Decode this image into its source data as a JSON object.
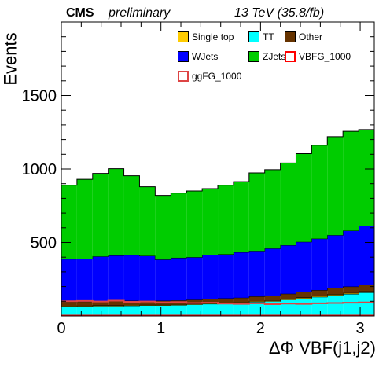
{
  "header": {
    "experiment": "CMS",
    "status": "preliminary",
    "energy": "13 TeV (35.8/fb)"
  },
  "chart_data": {
    "type": "area",
    "xlabel": "ΔΦ VBF(j1,j2)",
    "ylabel": "Events",
    "xlim": [
      0,
      3.1416
    ],
    "ylim": [
      0,
      2000
    ],
    "xticks": [
      0,
      1,
      2,
      3
    ],
    "yticks": [
      500,
      1000,
      1500
    ],
    "bin_edges": [
      0,
      0.157,
      0.314,
      0.471,
      0.628,
      0.785,
      0.942,
      1.1,
      1.257,
      1.414,
      1.571,
      1.728,
      1.885,
      2.042,
      2.199,
      2.356,
      2.513,
      2.67,
      2.827,
      2.985,
      3.142
    ],
    "stacked_series": [
      {
        "name": "TT",
        "color": "#00ffff",
        "values": [
          65,
          66,
          68,
          68,
          70,
          72,
          72,
          74,
          78,
          82,
          86,
          90,
          96,
          100,
          110,
          120,
          130,
          142,
          150,
          160
        ]
      },
      {
        "name": "Single top",
        "color": "#ffcc00",
        "values": [
          4,
          4,
          4,
          4,
          4,
          4,
          4,
          4,
          4,
          4,
          4,
          4,
          5,
          5,
          5,
          6,
          6,
          6,
          6,
          8
        ]
      },
      {
        "name": "Other",
        "color": "#663300",
        "values": [
          28,
          28,
          28,
          30,
          30,
          28,
          28,
          28,
          28,
          30,
          30,
          30,
          32,
          34,
          36,
          38,
          40,
          42,
          44,
          46
        ]
      },
      {
        "name": "WJets",
        "color": "#0000ff",
        "values": [
          290,
          290,
          305,
          310,
          310,
          305,
          280,
          290,
          290,
          300,
          300,
          310,
          310,
          320,
          330,
          340,
          350,
          360,
          380,
          400
        ]
      },
      {
        "name": "ZJets",
        "color": "#00cc00",
        "values": [
          503,
          542,
          565,
          590,
          540,
          470,
          436,
          440,
          450,
          450,
          470,
          480,
          530,
          536,
          560,
          600,
          636,
          670,
          676,
          654
        ]
      }
    ],
    "overlay_series": [
      {
        "name": "VBFG_1000",
        "color": "#ff0000",
        "values": [
          3,
          3,
          3,
          3,
          3,
          3,
          3,
          3,
          3,
          3,
          3,
          3,
          3,
          3,
          3,
          3,
          3,
          3,
          3,
          3
        ]
      },
      {
        "name": "ggFG_1000",
        "color": "#dd4444",
        "values": [
          100,
          102,
          98,
          104,
          96,
          98,
          92,
          94,
          88,
          90,
          84,
          82,
          86,
          80,
          84,
          82,
          86,
          88,
          90,
          92
        ]
      }
    ],
    "legend": {
      "placement": "top-right",
      "entries": [
        {
          "label": "Single top",
          "color": "#ffcc00",
          "style": "fill"
        },
        {
          "label": "TT",
          "color": "#00ffff",
          "style": "fill"
        },
        {
          "label": "Other",
          "color": "#663300",
          "style": "fill"
        },
        {
          "label": "WJets",
          "color": "#0000ff",
          "style": "fill"
        },
        {
          "label": "ZJets",
          "color": "#00cc00",
          "style": "fill"
        },
        {
          "label": "VBFG_1000",
          "color": "#ff0000",
          "style": "line"
        },
        {
          "label": "ggFG_1000",
          "color": "#dd4444",
          "style": "line"
        }
      ]
    }
  }
}
